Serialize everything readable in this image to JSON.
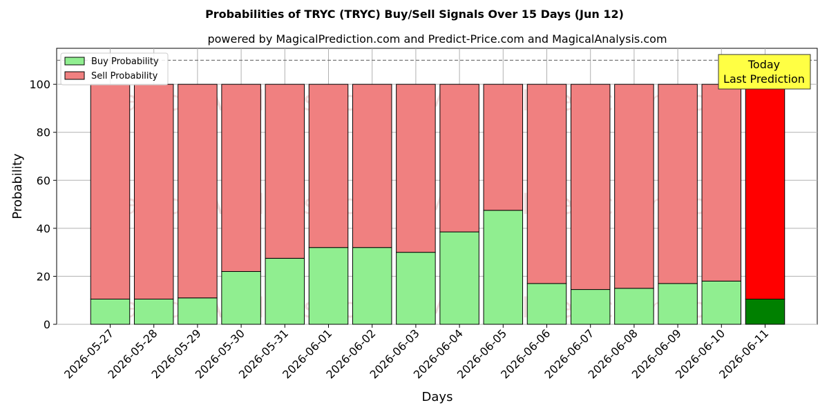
{
  "chart_data": {
    "type": "bar",
    "stacked": true,
    "title": "Probabilities of TRYC (TRYC) Buy/Sell Signals Over 15 Days (Jun 12)",
    "subtitle": "powered by MagicalPrediction.com and Predict-Price.com and MagicalAnalysis.com",
    "xlabel": "Days",
    "ylabel": "Probability",
    "ylim": [
      0,
      115
    ],
    "yticks": [
      0,
      20,
      40,
      60,
      80,
      100
    ],
    "grid": true,
    "legend_position": "top-left",
    "reference_line": 110,
    "categories": [
      "2026-05-27",
      "2026-05-28",
      "2026-05-29",
      "2026-05-30",
      "2026-05-31",
      "2026-06-01",
      "2026-06-02",
      "2026-06-03",
      "2026-06-04",
      "2026-06-05",
      "2026-06-06",
      "2026-06-07",
      "2026-06-08",
      "2026-06-09",
      "2026-06-10",
      "2026-06-11"
    ],
    "series": [
      {
        "name": "Buy Probability",
        "color": "#90ee90",
        "values": [
          10.5,
          10.5,
          11,
          22,
          27.5,
          32,
          32,
          30,
          38.5,
          47.5,
          17,
          14.5,
          15,
          17,
          18,
          10.5
        ]
      },
      {
        "name": "Sell Probability",
        "color": "#f08080",
        "values": [
          89.5,
          89.5,
          89,
          78,
          72.5,
          68,
          68,
          70,
          61.5,
          52.5,
          83,
          85.5,
          85,
          83,
          82,
          89.5
        ]
      }
    ],
    "highlight": {
      "index": 15,
      "buy_color": "#008000",
      "sell_color": "#ff0000"
    },
    "annotation": {
      "line1": "Today",
      "line2": "Last Prediction",
      "color": "#ffff44"
    },
    "watermarks": [
      "MagicalAnalysis.com",
      "MagicalPrediction.com"
    ]
  }
}
